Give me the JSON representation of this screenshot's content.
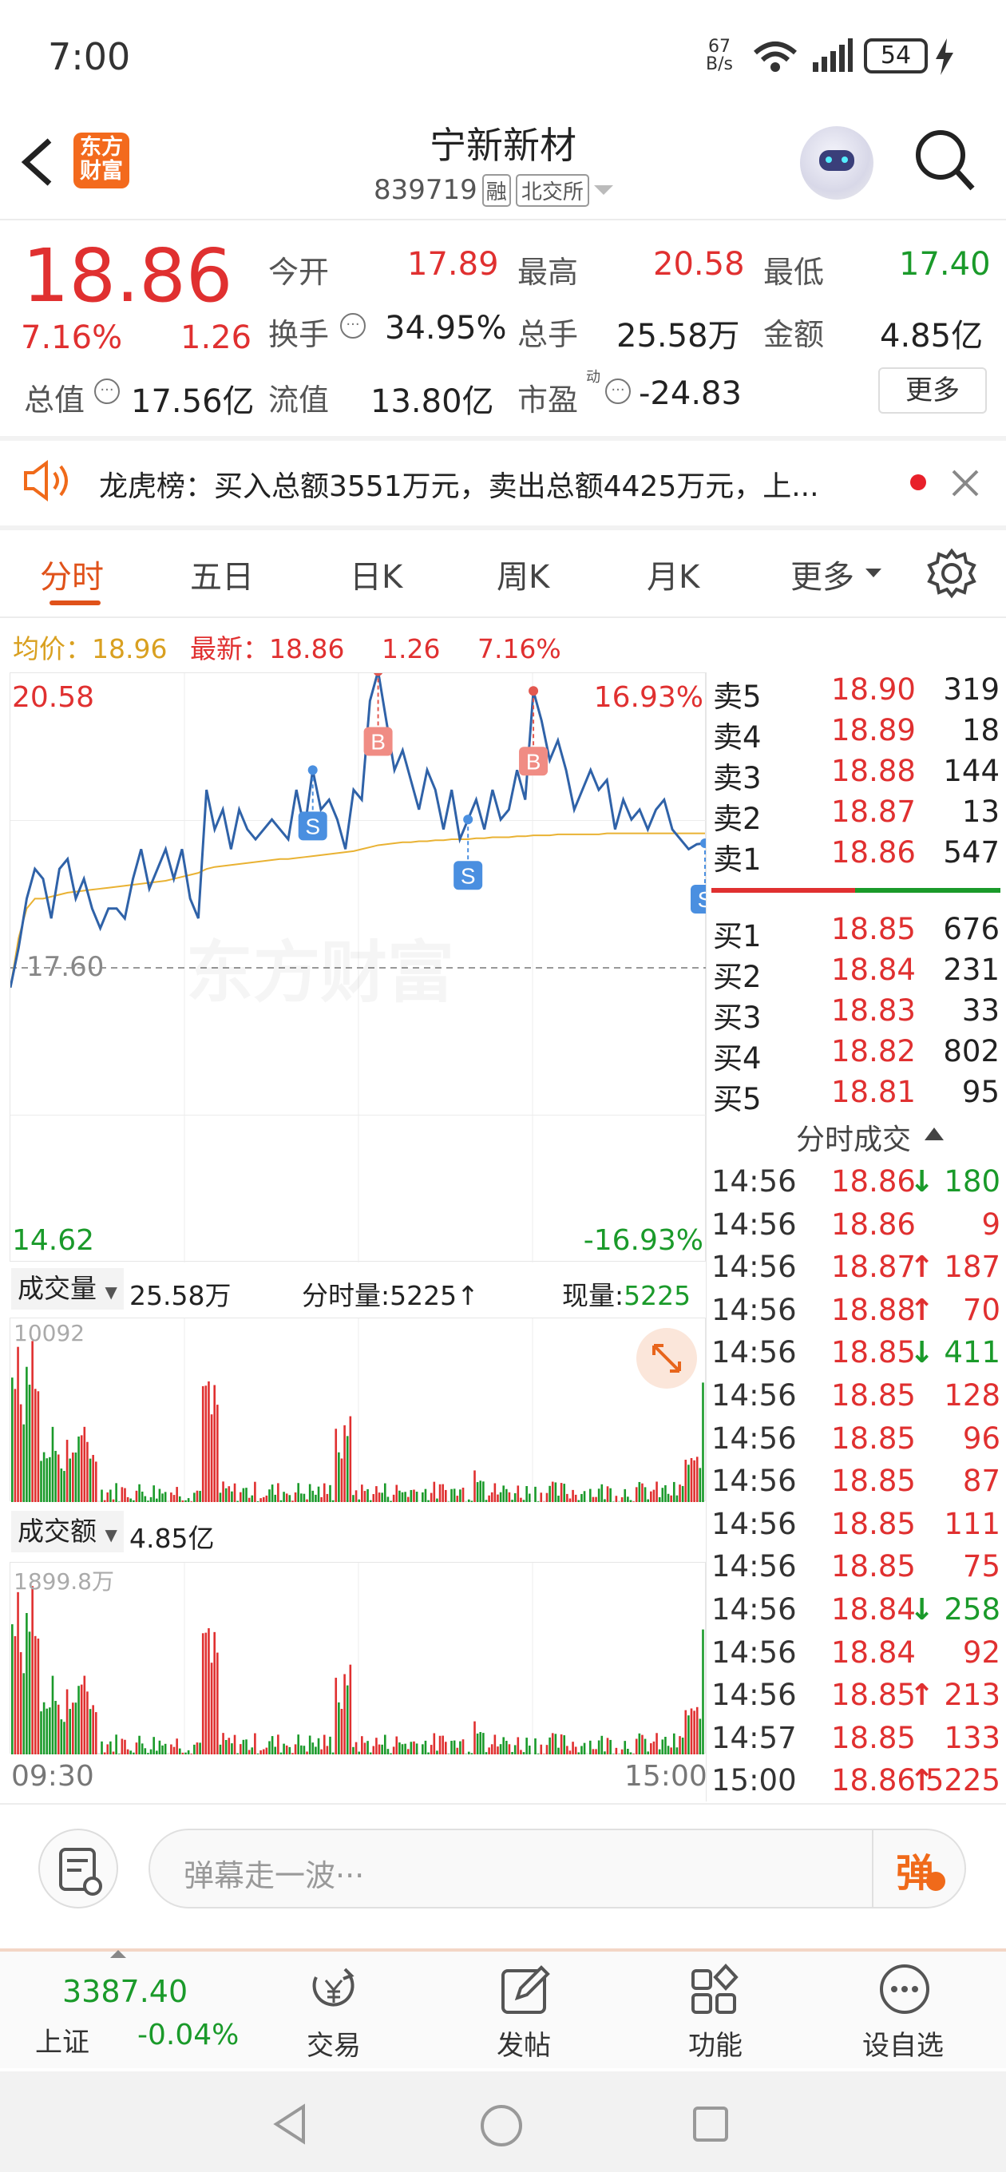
{
  "status_bar": {
    "time": "7:00",
    "net_speed_top": "67",
    "net_speed_unit": "B/s",
    "battery": "54"
  },
  "header": {
    "logo_text_1": "东方",
    "logo_text_2": "财富",
    "title": "宁新新材",
    "code": "839719",
    "tag_margin": "融",
    "tag_exchange": "北交所"
  },
  "quote": {
    "price": "18.86",
    "change_pct": "7.16%",
    "change": "1.26",
    "open_label": "今开",
    "open": "17.89",
    "high_label": "最高",
    "high": "20.58",
    "low_label": "最低",
    "low": "17.40",
    "turnover_label": "换手",
    "turnover": "34.95%",
    "volume_label": "总手",
    "volume": "25.58万",
    "amount_label": "金额",
    "amount": "4.85亿",
    "mktcap_label": "总值",
    "mktcap": "17.56亿",
    "float_label": "流值",
    "float": "13.80亿",
    "pe_label": "市盈",
    "pe_sup": "动",
    "pe": "-24.83",
    "more_label": "更多"
  },
  "notice": {
    "text": "龙虎榜：买入总额3551万元，卖出总额4425万元，上..."
  },
  "tabs": [
    {
      "label": "分时"
    },
    {
      "label": "五日"
    },
    {
      "label": "日K"
    },
    {
      "label": "周K"
    },
    {
      "label": "月K"
    },
    {
      "label": "更多"
    }
  ],
  "chart_summary": {
    "avg_label": "均价：",
    "avg": "18.96",
    "last_label": "最新：",
    "last": "18.86",
    "change": "1.26",
    "change_pct": "7.16%"
  },
  "chart_data": {
    "type": "line",
    "top_label": "20.58",
    "top_pct": "16.93%",
    "mid_label": "17.60",
    "bottom_label": "14.62",
    "bottom_pct": "-16.93%",
    "ylim": [
      14.62,
      20.58
    ],
    "watermark": "东方财富",
    "time_start": "09:30",
    "time_end": "15:00",
    "price_series": [
      17.4,
      17.8,
      18.3,
      18.6,
      18.5,
      18.1,
      18.6,
      18.7,
      18.3,
      18.5,
      18.2,
      18.0,
      18.2,
      18.2,
      18.1,
      18.5,
      18.8,
      18.4,
      18.6,
      18.8,
      18.5,
      18.8,
      18.3,
      18.1,
      19.4,
      19.0,
      19.2,
      18.8,
      19.2,
      19.0,
      18.9,
      19.0,
      19.1,
      19.0,
      18.9,
      19.4,
      19.0,
      19.6,
      19.2,
      19.3,
      19.1,
      18.8,
      19.4,
      19.3,
      20.3,
      20.6,
      20.1,
      19.6,
      19.8,
      19.5,
      19.2,
      19.6,
      19.4,
      19.0,
      19.4,
      18.9,
      19.1,
      19.3,
      19.0,
      19.4,
      19.1,
      19.2,
      19.6,
      19.3,
      20.4,
      20.1,
      19.7,
      19.9,
      19.6,
      19.2,
      19.4,
      19.6,
      19.4,
      19.5,
      19.0,
      19.3,
      19.1,
      19.2,
      19.0,
      19.2,
      19.3,
      19.0,
      18.9,
      18.8,
      18.85,
      18.86
    ],
    "avg_series": [
      17.4,
      17.9,
      18.2,
      18.3,
      18.3,
      18.32,
      18.34,
      18.36,
      18.37,
      18.38,
      18.39,
      18.4,
      18.41,
      18.42,
      18.43,
      18.44,
      18.45,
      18.46,
      18.47,
      18.48,
      18.5,
      18.52,
      18.54,
      18.56,
      18.6,
      18.62,
      18.63,
      18.64,
      18.65,
      18.66,
      18.67,
      18.68,
      18.69,
      18.7,
      18.7,
      18.71,
      18.72,
      18.73,
      18.74,
      18.75,
      18.76,
      18.77,
      18.78,
      18.8,
      18.82,
      18.84,
      18.85,
      18.86,
      18.87,
      18.87,
      18.88,
      18.88,
      18.89,
      18.89,
      18.9,
      18.9,
      18.9,
      18.91,
      18.91,
      18.92,
      18.92,
      18.92,
      18.93,
      18.93,
      18.94,
      18.94,
      18.94,
      18.95,
      18.95,
      18.95,
      18.95,
      18.95,
      18.95,
      18.96,
      18.96,
      18.96,
      18.96,
      18.96,
      18.96,
      18.96,
      18.96,
      18.96,
      18.96,
      18.96,
      18.96,
      18.96
    ],
    "markers": [
      {
        "label": "S",
        "type": "sell",
        "index": 37
      },
      {
        "label": "B",
        "type": "buy",
        "index": 45
      },
      {
        "label": "S",
        "type": "sell",
        "index": 56
      },
      {
        "label": "B",
        "type": "buy",
        "index": 64
      },
      {
        "label": "S",
        "type": "sell",
        "index": 85
      }
    ]
  },
  "volume_panel": {
    "label": "成交量",
    "total": "25.58万",
    "minute_label": "分时量:",
    "minute": "5225",
    "now_label": "现量:",
    "now": "5225",
    "max": "10092"
  },
  "amount_panel": {
    "label": "成交额",
    "total": "4.85亿",
    "max": "1899.8万"
  },
  "order_book": {
    "asks": [
      {
        "label": "卖5",
        "price": "18.90",
        "vol": "319"
      },
      {
        "label": "卖4",
        "price": "18.89",
        "vol": "18"
      },
      {
        "label": "卖3",
        "price": "18.88",
        "vol": "144"
      },
      {
        "label": "卖2",
        "price": "18.87",
        "vol": "13"
      },
      {
        "label": "卖1",
        "price": "18.86",
        "vol": "547"
      }
    ],
    "bids": [
      {
        "label": "买1",
        "price": "18.85",
        "vol": "676"
      },
      {
        "label": "买2",
        "price": "18.84",
        "vol": "231"
      },
      {
        "label": "买3",
        "price": "18.83",
        "vol": "33"
      },
      {
        "label": "买4",
        "price": "18.82",
        "vol": "802"
      },
      {
        "label": "买5",
        "price": "18.81",
        "vol": "95"
      }
    ]
  },
  "trades": {
    "title": "分时成交",
    "rows": [
      {
        "time": "14:56",
        "price": "18.86",
        "arrow": "↓",
        "vol": "180",
        "dir": "down"
      },
      {
        "time": "14:56",
        "price": "18.86",
        "arrow": "",
        "vol": "9",
        "dir": "up"
      },
      {
        "time": "14:56",
        "price": "18.87",
        "arrow": "↑",
        "vol": "187",
        "dir": "up"
      },
      {
        "time": "14:56",
        "price": "18.88",
        "arrow": "↑",
        "vol": "70",
        "dir": "up"
      },
      {
        "time": "14:56",
        "price": "18.85",
        "arrow": "↓",
        "vol": "411",
        "dir": "down"
      },
      {
        "time": "14:56",
        "price": "18.85",
        "arrow": "",
        "vol": "128",
        "dir": "up"
      },
      {
        "time": "14:56",
        "price": "18.85",
        "arrow": "",
        "vol": "96",
        "dir": "up"
      },
      {
        "time": "14:56",
        "price": "18.85",
        "arrow": "",
        "vol": "87",
        "dir": "up"
      },
      {
        "time": "14:56",
        "price": "18.85",
        "arrow": "",
        "vol": "111",
        "dir": "up"
      },
      {
        "time": "14:56",
        "price": "18.85",
        "arrow": "",
        "vol": "75",
        "dir": "up"
      },
      {
        "time": "14:56",
        "price": "18.84",
        "arrow": "↓",
        "vol": "258",
        "dir": "down"
      },
      {
        "time": "14:56",
        "price": "18.84",
        "arrow": "",
        "vol": "92",
        "dir": "up"
      },
      {
        "time": "14:56",
        "price": "18.85",
        "arrow": "↑",
        "vol": "213",
        "dir": "up"
      },
      {
        "time": "14:57",
        "price": "18.85",
        "arrow": "",
        "vol": "133",
        "dir": "up"
      },
      {
        "time": "15:00",
        "price": "18.86",
        "arrow": "↑",
        "vol": "5225",
        "dir": "up"
      }
    ]
  },
  "comment": {
    "placeholder": "弹幕走一波···",
    "danmu_label": "弹"
  },
  "bottom_nav": {
    "index_value": "3387.40",
    "index_name": "上证",
    "index_change": "-0.04%",
    "items": [
      {
        "label": "交易"
      },
      {
        "label": "发帖"
      },
      {
        "label": "功能"
      },
      {
        "label": "设自选"
      }
    ]
  }
}
